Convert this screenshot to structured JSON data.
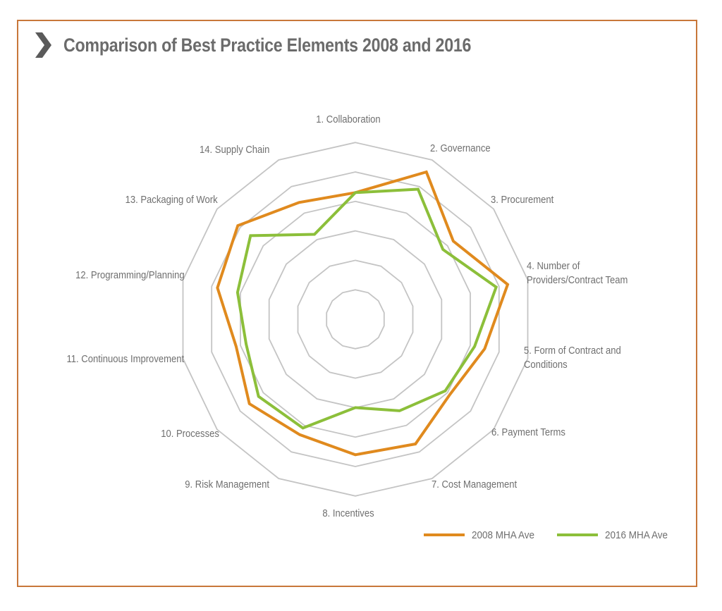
{
  "header": {
    "title": "Comparison of Best Practice Elements 2008 and 2016",
    "icon": "chevron-right-icon"
  },
  "colors": {
    "frame": "#c8773a",
    "series_2008": "#e08a1e",
    "series_2016": "#8cbf3a",
    "grid": "#c4c4c4",
    "text": "#6f6f6f",
    "chevron": "#5a5a5a"
  },
  "legend": {
    "items": [
      {
        "label": "2008 MHA Ave",
        "color": "#e08a1e"
      },
      {
        "label": "2016 MHA Ave",
        "color": "#8cbf3a"
      }
    ]
  },
  "axes": [
    {
      "label": "1. Collaboration"
    },
    {
      "label": "2. Governance"
    },
    {
      "label": "3. Procurement"
    },
    {
      "label": "4. Number of",
      "label2": "Providers/Contract Team"
    },
    {
      "label": "5. Form of Contract and",
      "label2": "Conditions"
    },
    {
      "label": "6. Payment Terms"
    },
    {
      "label": "7. Cost Management"
    },
    {
      "label": "8. Incentives"
    },
    {
      "label": "9. Risk Management"
    },
    {
      "label": "10. Processes"
    },
    {
      "label": "11. Continuous Improvement"
    },
    {
      "label": "12. Programming/Planning"
    },
    {
      "label": "13. Packaging of Work"
    },
    {
      "label": "14. Supply Chain"
    }
  ],
  "chart_data": {
    "type": "radar",
    "title": "Comparison of Best Practice Elements 2008 and 2016",
    "categories": [
      "1. Collaboration",
      "2. Governance",
      "3. Procurement",
      "4. Number of Providers/Contract Team",
      "5. Form of Contract and Conditions",
      "6. Payment Terms",
      "7. Cost Management",
      "8. Incentives",
      "9. Risk Management",
      "10. Processes",
      "11. Continuous Improvement",
      "12. Programming/Planning",
      "13. Packaging of Work",
      "14. Supply Chain"
    ],
    "series": [
      {
        "name": "2008 MHA Ave",
        "color": "#e08a1e",
        "values": [
          4.3,
          5.55,
          4.25,
          5.3,
          4.5,
          4.1,
          4.7,
          4.6,
          4.35,
          4.6,
          4.15,
          4.8,
          5.1,
          4.4
        ]
      },
      {
        "name": "2016 MHA Ave",
        "color": "#8cbf3a",
        "values": [
          4.3,
          4.9,
          3.8,
          4.9,
          4.15,
          3.9,
          3.45,
          3.0,
          4.1,
          4.2,
          3.8,
          4.1,
          4.55,
          3.2
        ]
      }
    ],
    "rlim": [
      0,
      6
    ],
    "grid_rings": [
      1,
      2,
      3,
      4,
      5,
      6
    ],
    "grid": true,
    "axis_tick_labels": false,
    "legend_position": "bottom-right"
  }
}
